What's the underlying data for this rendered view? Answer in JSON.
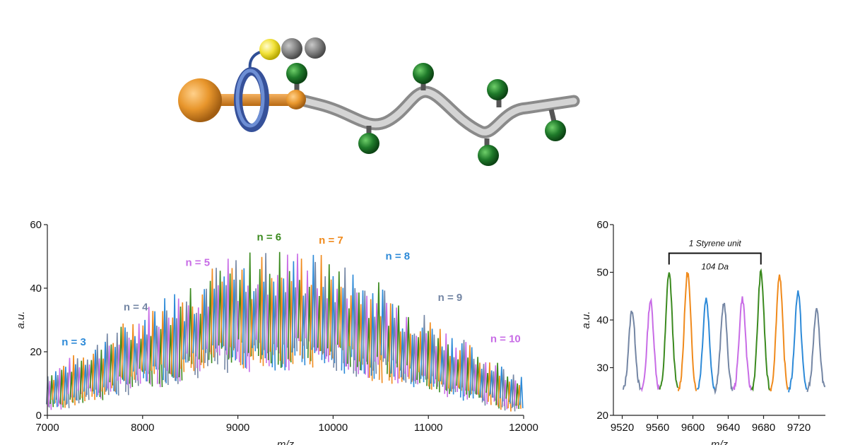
{
  "colors": {
    "slate": "#7486a4",
    "violet": "#c86ce6",
    "green": "#3b8a1f",
    "orange": "#f08a1c",
    "blue": "#2d8ad8",
    "gold_sphere": "#e8962c",
    "ring": "#4f6fb8",
    "backbone": "#b4b4b4",
    "pendant": "#1f7a2a",
    "yellow_bead": "#f2e23a",
    "grey_bead": "#858585"
  },
  "chart_data": [
    {
      "type": "line",
      "description_type": "mass spectrum",
      "title": "",
      "xlabel": "m/z",
      "ylabel": "a.u.",
      "xlim": [
        7000,
        12000
      ],
      "ylim": [
        0,
        60
      ],
      "xticks": [
        7000,
        8000,
        9000,
        10000,
        11000,
        12000
      ],
      "yticks": [
        0,
        20,
        40,
        60
      ],
      "envelope_peak_x": 9450,
      "envelope_peak_y": 52,
      "peak_spacing_da": 20.8,
      "series_color_cycle": [
        "slate",
        "violet",
        "green",
        "orange",
        "blue"
      ],
      "series_labels": [
        {
          "text": "n = 3",
          "color": "blue",
          "x": 7150,
          "y": 22
        },
        {
          "text": "n = 4",
          "color": "slate",
          "x": 7800,
          "y": 33
        },
        {
          "text": "n = 5",
          "color": "violet",
          "x": 8450,
          "y": 47
        },
        {
          "text": "n = 6",
          "color": "green",
          "x": 9200,
          "y": 55
        },
        {
          "text": "n = 7",
          "color": "orange",
          "x": 9850,
          "y": 54
        },
        {
          "text": "n = 8",
          "color": "blue",
          "x": 10550,
          "y": 49
        },
        {
          "text": "n = 9",
          "color": "slate",
          "x": 11100,
          "y": 36
        },
        {
          "text": "n = 10",
          "color": "violet",
          "x": 11650,
          "y": 23
        }
      ]
    },
    {
      "type": "line",
      "description_type": "zoomed mass spectrum",
      "title": "",
      "xlabel": "m/z",
      "ylabel": "a.u.",
      "xlim": [
        9510,
        9750
      ],
      "ylim": [
        20,
        60
      ],
      "xticks": [
        9520,
        9560,
        9600,
        9640,
        9680,
        9720
      ],
      "yticks": [
        20,
        30,
        40,
        50,
        60
      ],
      "baseline": 25,
      "peaks": [
        {
          "x": 9531,
          "y": 42,
          "color": "slate"
        },
        {
          "x": 9552,
          "y": 44,
          "color": "violet"
        },
        {
          "x": 9573,
          "y": 50,
          "color": "green"
        },
        {
          "x": 9594,
          "y": 50,
          "color": "orange"
        },
        {
          "x": 9615,
          "y": 44.5,
          "color": "blue"
        },
        {
          "x": 9635,
          "y": 43.5,
          "color": "slate"
        },
        {
          "x": 9656,
          "y": 44.5,
          "color": "violet"
        },
        {
          "x": 9677,
          "y": 50,
          "color": "green"
        },
        {
          "x": 9698,
          "y": 49.5,
          "color": "orange"
        },
        {
          "x": 9719,
          "y": 46,
          "color": "blue"
        },
        {
          "x": 9740,
          "y": 42,
          "color": "slate"
        }
      ],
      "bracket": {
        "x_start": 9573,
        "x_end": 9677,
        "y": 54
      },
      "annotation_top": "1 Styrene unit",
      "annotation_bottom": "104 Da"
    }
  ]
}
